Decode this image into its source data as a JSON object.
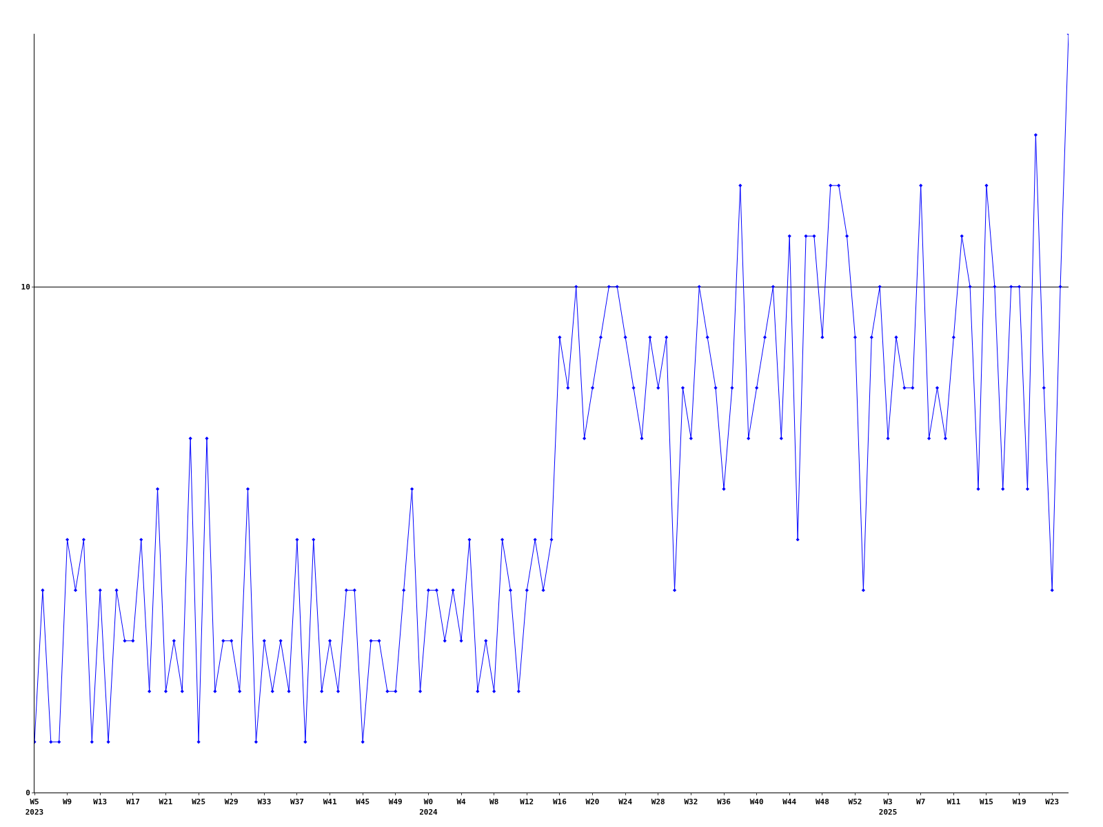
{
  "chart_data": {
    "type": "line",
    "categories": [
      "W5\n2023",
      null,
      null,
      null,
      "W9",
      null,
      null,
      null,
      "W13",
      null,
      null,
      null,
      "W17",
      null,
      null,
      null,
      "W21",
      null,
      null,
      null,
      "W25",
      null,
      null,
      null,
      "W29",
      null,
      null,
      null,
      "W33",
      null,
      null,
      null,
      "W37",
      null,
      null,
      null,
      "W41",
      null,
      null,
      null,
      "W45",
      null,
      null,
      null,
      "W49",
      null,
      null,
      null,
      "W0\n2024",
      null,
      null,
      null,
      "W4",
      null,
      null,
      null,
      "W8",
      null,
      null,
      null,
      "W12",
      null,
      null,
      null,
      "W16",
      null,
      null,
      null,
      "W20",
      null,
      null,
      null,
      "W24",
      null,
      null,
      null,
      "W28",
      null,
      null,
      null,
      "W32",
      null,
      null,
      null,
      "W36",
      null,
      null,
      null,
      "W40",
      null,
      null,
      null,
      "W44",
      null,
      null,
      null,
      "W48",
      null,
      null,
      null,
      "W52",
      null,
      null,
      null,
      "W3\n2025",
      null,
      null,
      null,
      "W7",
      null,
      null,
      null,
      "W11",
      null,
      null,
      null,
      "W15",
      null,
      null,
      null,
      "W19",
      null,
      null,
      null,
      "W23",
      null,
      null
    ],
    "series": [
      {
        "color": "#0000ff",
        "values": [
          1,
          4,
          1,
          1,
          5,
          4,
          5,
          1,
          4,
          1,
          4,
          3,
          3,
          5,
          2,
          6,
          2,
          3,
          2,
          7,
          1,
          7,
          2,
          3,
          3,
          2,
          6,
          1,
          3,
          2,
          3,
          2,
          5,
          1,
          5,
          2,
          3,
          2,
          4,
          4,
          1,
          3,
          3,
          2,
          2,
          4,
          6,
          2,
          4,
          4,
          3,
          4,
          3,
          5,
          2,
          3,
          2,
          5,
          4,
          2,
          4,
          5,
          4,
          5,
          9,
          8,
          10,
          7,
          8,
          9,
          10,
          10,
          9,
          8,
          7,
          9,
          8,
          9,
          4,
          8,
          7,
          10,
          9,
          8,
          6,
          8,
          12,
          7,
          8,
          9,
          10,
          7,
          11,
          5,
          11,
          11,
          9,
          12,
          12,
          11,
          9,
          4,
          9,
          10,
          7,
          9,
          8,
          8,
          12,
          7,
          8,
          7,
          9,
          11,
          10,
          6,
          12,
          10,
          6,
          10,
          10,
          6,
          13,
          8,
          4,
          10,
          15
        ]
      }
    ],
    "ylim": [
      0,
      15
    ],
    "yticks": [
      0,
      10
    ],
    "grid": "y",
    "marker": "diamond",
    "line_style": "solid"
  }
}
